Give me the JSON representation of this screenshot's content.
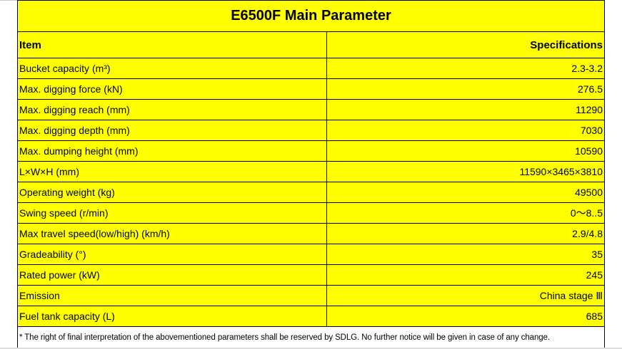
{
  "title": "E6500F Main Parameter",
  "headers": {
    "item": "Item",
    "spec": "Specifications"
  },
  "rows": [
    {
      "item": "Bucket capacity (m³)",
      "value": "2.3-3.2"
    },
    {
      "item": "Max. digging force (kN)",
      "value": "276.5"
    },
    {
      "item": "Max. digging reach (mm)",
      "value": "11290"
    },
    {
      "item": "Max. digging depth (mm)",
      "value": "7030"
    },
    {
      "item": "Max. dumping height (mm)",
      "value": "10590"
    },
    {
      "item": "L×W×H (mm)",
      "value": "11590×3465×3810"
    },
    {
      "item": "Operating weight (kg)",
      "value": "49500"
    },
    {
      "item": "Swing speed (r/min)",
      "value": "0～8..5"
    },
    {
      "item": "Max travel speed(low/high) (km/h)",
      "value": "2.9/4.8"
    },
    {
      "item": "Gradeability (°)",
      "value": "35"
    },
    {
      "item": "Rated power (kW)",
      "value": "245"
    },
    {
      "item": "Emission",
      "value": "China stage Ⅲ"
    },
    {
      "item": "Fuel tank capacity (L)",
      "value": "685"
    }
  ],
  "footnote": "*  The right of final interpretation of the abovementioned parameters shall be reserved by SDLG. No further notice will be given in case of any change.",
  "colors": {
    "cell_bg": "#ffff00",
    "border": "#000000"
  }
}
